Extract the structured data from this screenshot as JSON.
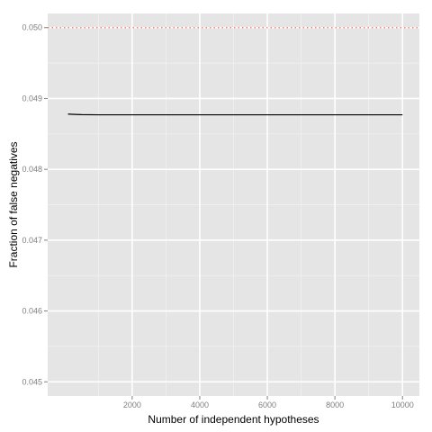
{
  "chart_data": {
    "type": "line",
    "title": "",
    "xlabel": "Number of independent hypotheses",
    "ylabel": "Fraction of false negatives",
    "xlim": [
      -500,
      10500
    ],
    "ylim": [
      0.0448,
      0.0502
    ],
    "x_ticks": [
      2000,
      4000,
      6000,
      8000,
      10000
    ],
    "x_tick_labels": [
      "2000",
      "4000",
      "6000",
      "8000",
      "10000"
    ],
    "y_ticks": [
      0.045,
      0.046,
      0.047,
      0.048,
      0.049,
      0.05
    ],
    "y_tick_labels": [
      "0.045",
      "0.046",
      "0.047",
      "0.048",
      "0.049",
      "0.050"
    ],
    "grid": true,
    "series": [
      {
        "color": "#000000",
        "style": "solid",
        "x": [
          100,
          300,
          500,
          1000,
          2000,
          4000,
          6000,
          8000,
          10000
        ],
        "y": [
          0.04878,
          0.048775,
          0.048772,
          0.04877,
          0.04877,
          0.04877,
          0.04877,
          0.04877,
          0.04877
        ]
      }
    ],
    "reference_lines": [
      {
        "y": 0.05,
        "color": "#f8766d",
        "style": "dotted"
      }
    ],
    "colors": {
      "panel_background": "#e5e5e5",
      "grid_major": "#ffffff",
      "grid_minor": "#f2f2f2",
      "tick_text": "#7f7f7f",
      "title_text": "#000000"
    }
  }
}
